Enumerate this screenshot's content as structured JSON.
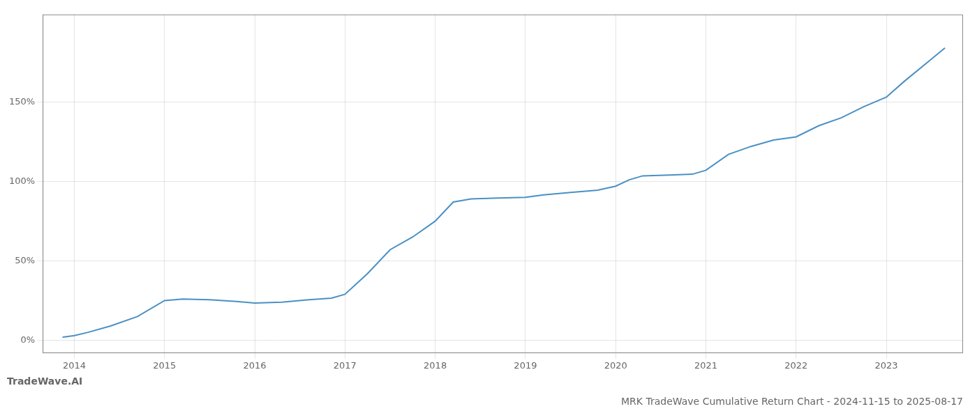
{
  "chart_data": {
    "type": "line",
    "title": "MRK TradeWave Cumulative Return Chart - 2024-11-15 to 2025-08-17",
    "annotations": [
      "TradeWave.AI"
    ],
    "x": [
      2013.87,
      2014.0,
      2014.15,
      2014.4,
      2014.7,
      2015.0,
      2015.2,
      2015.5,
      2015.8,
      2016.0,
      2016.3,
      2016.6,
      2016.85,
      2017.0,
      2017.25,
      2017.5,
      2017.75,
      2018.0,
      2018.2,
      2018.4,
      2018.7,
      2019.0,
      2019.2,
      2019.5,
      2019.8,
      2020.0,
      2020.15,
      2020.3,
      2020.6,
      2020.85,
      2021.0,
      2021.25,
      2021.5,
      2021.75,
      2022.0,
      2022.25,
      2022.5,
      2022.75,
      2023.0,
      2023.2,
      2023.5,
      2023.65
    ],
    "values": [
      2.0,
      3.0,
      5.0,
      9.0,
      15.0,
      25.0,
      26.0,
      25.5,
      24.5,
      23.5,
      24.0,
      25.5,
      26.5,
      29.0,
      42.0,
      57.0,
      65.0,
      75.0,
      87.0,
      89.0,
      89.5,
      90.0,
      91.5,
      93.0,
      94.5,
      97.0,
      101.0,
      103.5,
      104.0,
      104.5,
      107.0,
      117.0,
      122.0,
      126.0,
      128.0,
      135.0,
      140.0,
      147.0,
      153.0,
      163.0,
      177.0,
      184.0
    ],
    "color": "#4a90c4",
    "xlim": [
      2013.65,
      2023.85
    ],
    "xticks": [
      2014,
      2015,
      2016,
      2017,
      2018,
      2019,
      2020,
      2021,
      2022,
      2023
    ],
    "ylim": [
      -8,
      205
    ],
    "yticks": [
      {
        "value": 0,
        "label": "0%"
      },
      {
        "value": 50,
        "label": "50%"
      },
      {
        "value": 100,
        "label": "100%"
      },
      {
        "value": 150,
        "label": "150%"
      }
    ],
    "grid": true
  }
}
